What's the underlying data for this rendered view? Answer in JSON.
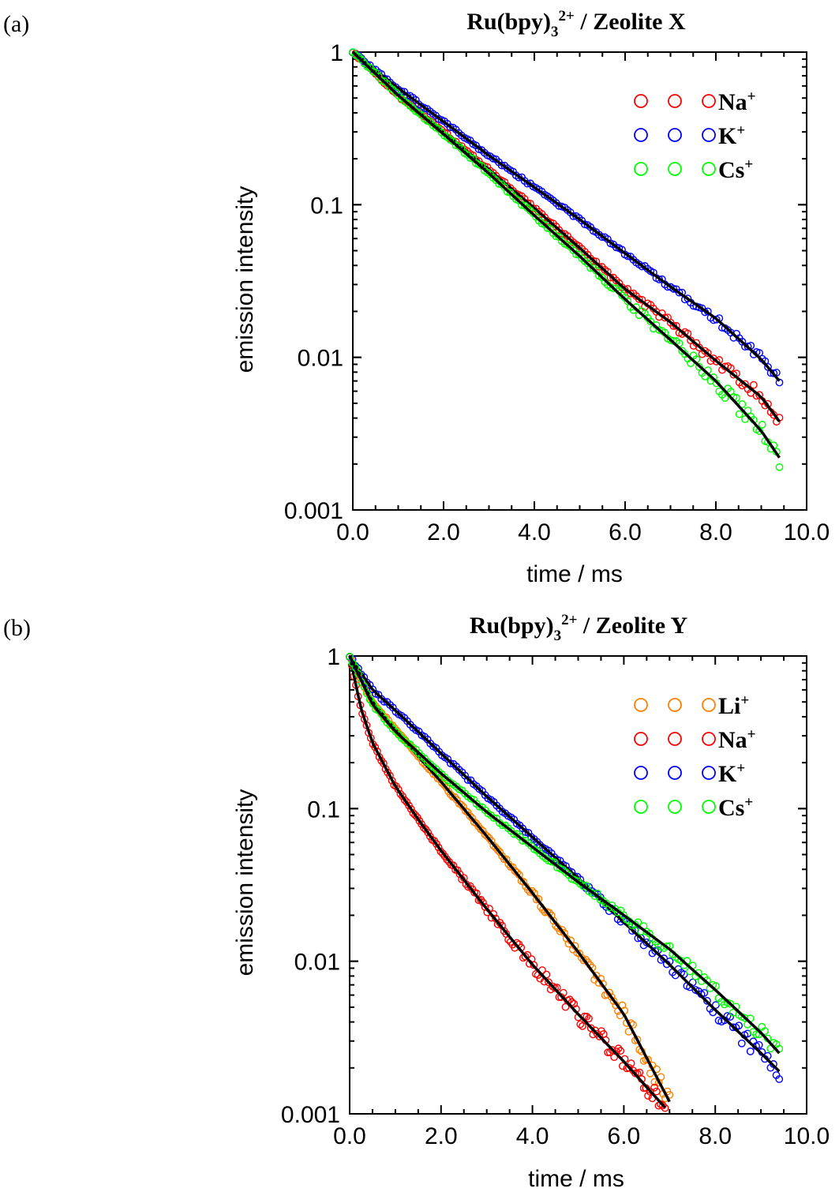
{
  "chart_data": [
    {
      "type": "scatter",
      "panel_label": "(a)",
      "title_main": "Ru(bpy)",
      "title_sub": "3",
      "title_sup": "2+",
      "title_rest": " / Zeolite X",
      "xlabel": "time / ms",
      "ylabel": "emission intensity",
      "xlim": [
        0,
        10
      ],
      "ylim": [
        0.001,
        1
      ],
      "yscale": "log",
      "x_ticks": [
        "0.0",
        "2.0",
        "4.0",
        "6.0",
        "8.0",
        "10.0"
      ],
      "y_ticks": [
        "0.001",
        "0.01",
        "0.1",
        "1"
      ],
      "legend_position": "top-right",
      "fit_line_color": "#000000",
      "series": [
        {
          "label_base": "Na",
          "label_sup": "+",
          "color": "#ff0000",
          "x": [
            0,
            1,
            2,
            3,
            4,
            5,
            6,
            7,
            8,
            9,
            9.4
          ],
          "y": [
            1,
            0.52,
            0.3,
            0.17,
            0.095,
            0.052,
            0.028,
            0.017,
            0.0095,
            0.0055,
            0.0038
          ]
        },
        {
          "label_base": "K",
          "label_sup": "+",
          "color": "#0000ff",
          "x": [
            0,
            1,
            2,
            3,
            4,
            5,
            6,
            7,
            8,
            9,
            9.4
          ],
          "y": [
            1,
            0.58,
            0.35,
            0.21,
            0.13,
            0.08,
            0.048,
            0.029,
            0.018,
            0.0097,
            0.007
          ]
        },
        {
          "label_base": "Cs",
          "label_sup": "+",
          "color": "#00ff00",
          "x": [
            0,
            1,
            2,
            3,
            4,
            5,
            6,
            7,
            8,
            9,
            9.4
          ],
          "y": [
            1,
            0.52,
            0.29,
            0.16,
            0.085,
            0.046,
            0.024,
            0.013,
            0.007,
            0.0033,
            0.0022
          ]
        }
      ]
    },
    {
      "type": "scatter",
      "panel_label": "(b)",
      "title_main": "Ru(bpy)",
      "title_sub": "3",
      "title_sup": "2+",
      "title_rest": " / Zeolite Y",
      "xlabel": "time / ms",
      "ylabel": "emission intensity",
      "xlim": [
        0,
        10
      ],
      "ylim": [
        0.001,
        1
      ],
      "yscale": "log",
      "x_ticks": [
        "0.0",
        "2.0",
        "4.0",
        "6.0",
        "8.0",
        "10.0"
      ],
      "y_ticks": [
        "0.001",
        "0.01",
        "0.1",
        "1"
      ],
      "legend_position": "top-right",
      "fit_line_color": "#000000",
      "series": [
        {
          "label_base": "Li",
          "label_sup": "+",
          "color": "#ff8000",
          "x": [
            0,
            0.5,
            1,
            1.5,
            2,
            3,
            4,
            5,
            6,
            7
          ],
          "y": [
            1,
            0.5,
            0.33,
            0.22,
            0.15,
            0.066,
            0.028,
            0.0115,
            0.0045,
            0.0012
          ]
        },
        {
          "label_base": "Na",
          "label_sup": "+",
          "color": "#ff0000",
          "x": [
            0,
            0.25,
            0.5,
            1,
            1.5,
            2,
            3,
            4,
            5,
            6,
            6.9
          ],
          "y": [
            1,
            0.45,
            0.27,
            0.14,
            0.085,
            0.053,
            0.022,
            0.0095,
            0.0045,
            0.0022,
            0.0011
          ]
        },
        {
          "label_base": "K",
          "label_sup": "+",
          "color": "#0000ff",
          "x": [
            0,
            0.5,
            1,
            2,
            3,
            4,
            5,
            6,
            7,
            8,
            9,
            9.4
          ],
          "y": [
            1,
            0.6,
            0.44,
            0.23,
            0.12,
            0.065,
            0.035,
            0.018,
            0.0095,
            0.0048,
            0.0025,
            0.0019
          ]
        },
        {
          "label_base": "Cs",
          "label_sup": "+",
          "color": "#00ff00",
          "x": [
            0,
            0.5,
            1,
            2,
            3,
            4,
            5,
            6,
            7,
            8,
            9,
            9.4
          ],
          "y": [
            1,
            0.48,
            0.32,
            0.17,
            0.095,
            0.056,
            0.033,
            0.02,
            0.012,
            0.0065,
            0.0034,
            0.0025
          ]
        }
      ]
    }
  ]
}
